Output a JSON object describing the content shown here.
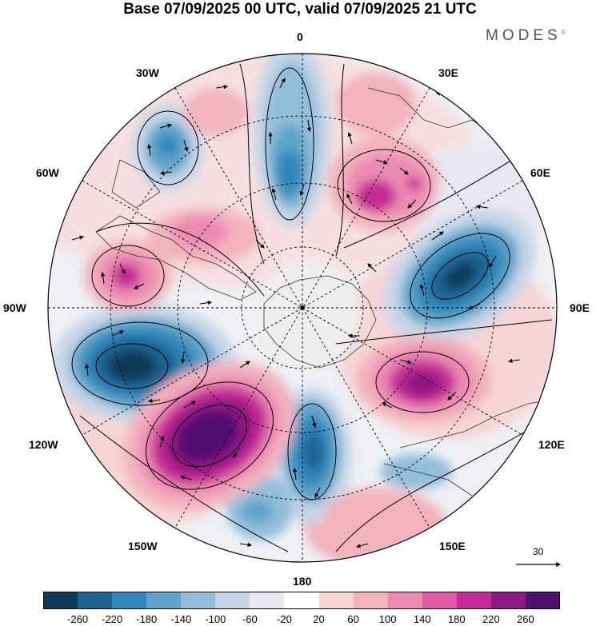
{
  "title": "Base 07/09/2025 00 UTC, valid 07/09/2025 21 UTC",
  "brand": {
    "name": "MODES",
    "mark": "©"
  },
  "meridian_labels": {
    "m0": "0",
    "m30e": "30E",
    "m60e": "60E",
    "m90e": "90E",
    "m120e": "120E",
    "m150e": "150E",
    "m180": "180",
    "m150w": "150W",
    "m120w": "120W",
    "m90w": "90W",
    "m60w": "60W",
    "m30w": "30W"
  },
  "vector_scale": {
    "label": "30"
  },
  "colorbar": {
    "colors": [
      "#0f3a56",
      "#1b6291",
      "#2f86b8",
      "#5ea4cb",
      "#93bedb",
      "#c6d6e7",
      "#e8e8f1",
      "#ffffff",
      "#f6d5d7",
      "#f2b2bf",
      "#ec8ab2",
      "#e05aa6",
      "#c42b94",
      "#8f1983",
      "#4f116e"
    ],
    "ticks": [
      "-260",
      "-220",
      "-180",
      "-140",
      "-100",
      "-60",
      "-20",
      "20",
      "60",
      "100",
      "140",
      "180",
      "220",
      "260"
    ]
  }
}
